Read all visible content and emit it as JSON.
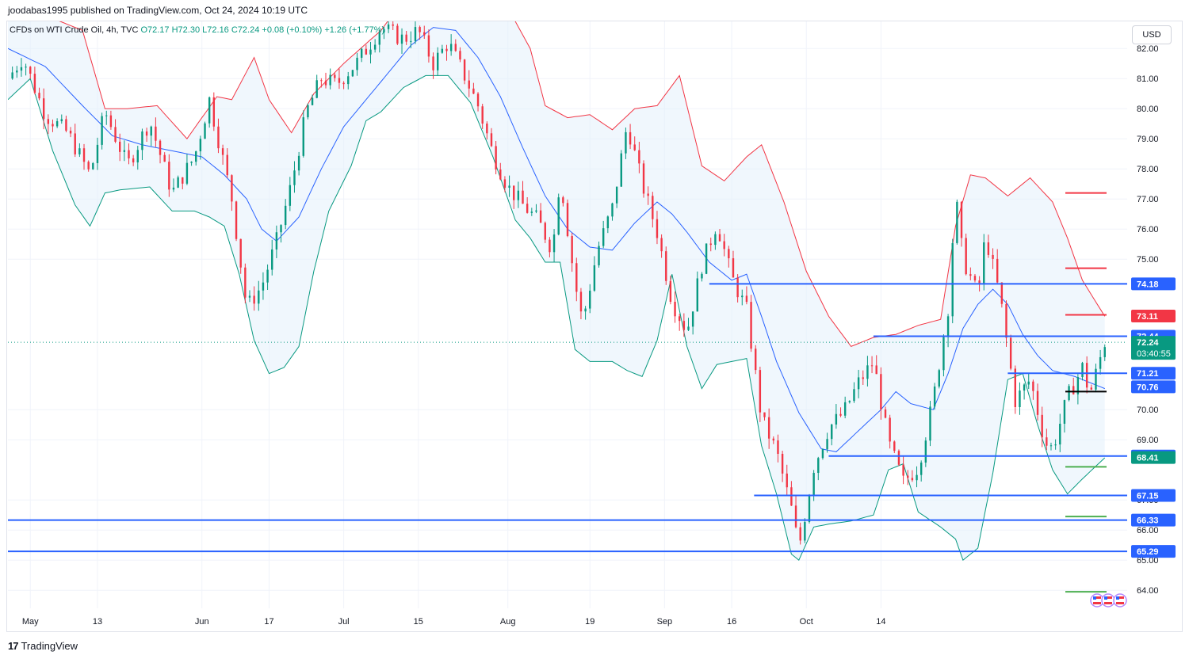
{
  "header": {
    "publisher_line": "joodabas1995 published on TradingView.com, Oct 24, 2024 10:19 UTC"
  },
  "legend": {
    "symbol": "CFDs on WTI Crude Oil, 4h, TVC",
    "open": "O72.17",
    "high": "H72.30",
    "low": "L72.16",
    "close": "C72.24",
    "change": "+0.08 (+0.10%)",
    "change2": "+1.26 (+1.77%)"
  },
  "currency_label": "USD",
  "footer": {
    "logo_mark": "17",
    "brand": "TradingView"
  },
  "colors": {
    "upper_band": "#f23645",
    "lower_band": "#089981",
    "basis": "#2962ff",
    "band_fill": "#e3f0fb",
    "candle_up": "#089981",
    "candle_down": "#f23645",
    "support_resistance": "#2962ff",
    "price_tag_blue": "#2962ff",
    "price_tag_red": "#f23645",
    "price_tag_green": "#089981",
    "target_red": "#f23645",
    "target_green": "#4caf50",
    "pivot_black": "#000000"
  },
  "chart_data": {
    "type": "candlestick",
    "symbol": "WTI Crude Oil",
    "interval": "4h",
    "x_ticks": [
      "May",
      "13",
      "Jun",
      "17",
      "Jul",
      "15",
      "Aug",
      "19",
      "Sep",
      "16",
      "Oct",
      "14"
    ],
    "y_ticks": [
      "82.00",
      "81.00",
      "80.00",
      "79.00",
      "78.00",
      "77.00",
      "76.00",
      "75.00",
      "70.00",
      "69.00",
      "67.00",
      "66.00",
      "65.00",
      "64.00"
    ],
    "ylim": [
      63.4,
      82.9
    ],
    "grid": true,
    "price_path": [
      {
        "t": 0,
        "p": 81.0
      },
      {
        "t": 2,
        "p": 81.7
      },
      {
        "t": 5,
        "p": 79.8
      },
      {
        "t": 8,
        "p": 79.2
      },
      {
        "t": 11,
        "p": 77.8
      },
      {
        "t": 13,
        "p": 79.9
      },
      {
        "t": 16,
        "p": 78.1
      },
      {
        "t": 19,
        "p": 79.6
      },
      {
        "t": 22,
        "p": 77.2
      },
      {
        "t": 25,
        "p": 78.4
      },
      {
        "t": 27,
        "p": 80.3
      },
      {
        "t": 30,
        "p": 77.0
      },
      {
        "t": 32,
        "p": 73.4
      },
      {
        "t": 34,
        "p": 74.1
      },
      {
        "t": 36,
        "p": 75.6
      },
      {
        "t": 38,
        "p": 77.5
      },
      {
        "t": 40,
        "p": 79.9
      },
      {
        "t": 42,
        "p": 81.0
      },
      {
        "t": 44,
        "p": 80.8
      },
      {
        "t": 47,
        "p": 81.6
      },
      {
        "t": 50,
        "p": 82.7
      },
      {
        "t": 53,
        "p": 82.3
      },
      {
        "t": 55,
        "p": 82.6
      },
      {
        "t": 57,
        "p": 81.5
      },
      {
        "t": 59,
        "p": 82.2
      },
      {
        "t": 61,
        "p": 81.2
      },
      {
        "t": 63,
        "p": 80.1
      },
      {
        "t": 65,
        "p": 78.5
      },
      {
        "t": 67,
        "p": 77.4
      },
      {
        "t": 69,
        "p": 76.8
      },
      {
        "t": 71,
        "p": 76.3
      },
      {
        "t": 73,
        "p": 75.3
      },
      {
        "t": 74,
        "p": 77.8
      },
      {
        "t": 76,
        "p": 74.2
      },
      {
        "t": 77,
        "p": 72.9
      },
      {
        "t": 79,
        "p": 75.3
      },
      {
        "t": 81,
        "p": 76.7
      },
      {
        "t": 83,
        "p": 79.5
      },
      {
        "t": 85,
        "p": 77.5
      },
      {
        "t": 87,
        "p": 75.9
      },
      {
        "t": 89,
        "p": 73.6
      },
      {
        "t": 91,
        "p": 72.6
      },
      {
        "t": 93,
        "p": 74.8
      },
      {
        "t": 95,
        "p": 76.2
      },
      {
        "t": 97,
        "p": 74.4
      },
      {
        "t": 99,
        "p": 73.3
      },
      {
        "t": 101,
        "p": 69.7
      },
      {
        "t": 103,
        "p": 68.6
      },
      {
        "t": 105,
        "p": 66.7
      },
      {
        "t": 106,
        "p": 65.4
      },
      {
        "t": 108,
        "p": 68.1
      },
      {
        "t": 110,
        "p": 69.4
      },
      {
        "t": 112,
        "p": 69.9
      },
      {
        "t": 114,
        "p": 70.9
      },
      {
        "t": 116,
        "p": 71.6
      },
      {
        "t": 118,
        "p": 68.9
      },
      {
        "t": 120,
        "p": 67.6
      },
      {
        "t": 122,
        "p": 68.1
      },
      {
        "t": 124,
        "p": 70.3
      },
      {
        "t": 126,
        "p": 73.4
      },
      {
        "t": 127,
        "p": 77.1
      },
      {
        "t": 128,
        "p": 75.0
      },
      {
        "t": 130,
        "p": 73.8
      },
      {
        "t": 131,
        "p": 75.8
      },
      {
        "t": 133,
        "p": 73.7
      },
      {
        "t": 135,
        "p": 70.3
      },
      {
        "t": 137,
        "p": 71.0
      },
      {
        "t": 139,
        "p": 68.9
      },
      {
        "t": 140,
        "p": 68.7
      },
      {
        "t": 142,
        "p": 70.4
      },
      {
        "t": 144,
        "p": 71.4
      },
      {
        "t": 145,
        "p": 70.5
      },
      {
        "t": 147,
        "p": 72.24
      }
    ],
    "bands": {
      "upper": [
        {
          "t": 0,
          "p": 84.8
        },
        {
          "t": 5,
          "p": 83.1
        },
        {
          "t": 10,
          "p": 82.6
        },
        {
          "t": 13,
          "p": 80.0
        },
        {
          "t": 16,
          "p": 80.0
        },
        {
          "t": 20,
          "p": 80.1
        },
        {
          "t": 24,
          "p": 79.0
        },
        {
          "t": 28,
          "p": 80.4
        },
        {
          "t": 30,
          "p": 80.3
        },
        {
          "t": 33,
          "p": 81.7
        },
        {
          "t": 35,
          "p": 80.3
        },
        {
          "t": 38,
          "p": 79.2
        },
        {
          "t": 41,
          "p": 80.5
        },
        {
          "t": 45,
          "p": 81.5
        },
        {
          "t": 50,
          "p": 82.6
        },
        {
          "t": 55,
          "p": 84.3
        },
        {
          "t": 60,
          "p": 85.5
        },
        {
          "t": 63,
          "p": 84.5
        },
        {
          "t": 66,
          "p": 83.8
        },
        {
          "t": 70,
          "p": 82.0
        },
        {
          "t": 72,
          "p": 80.1
        },
        {
          "t": 75,
          "p": 79.7
        },
        {
          "t": 78,
          "p": 79.8
        },
        {
          "t": 81,
          "p": 79.3
        },
        {
          "t": 84,
          "p": 80.0
        },
        {
          "t": 87,
          "p": 80.1
        },
        {
          "t": 90,
          "p": 81.1
        },
        {
          "t": 93,
          "p": 78.1
        },
        {
          "t": 96,
          "p": 77.6
        },
        {
          "t": 99,
          "p": 78.4
        },
        {
          "t": 101,
          "p": 78.8
        },
        {
          "t": 104,
          "p": 76.9
        },
        {
          "t": 107,
          "p": 74.6
        },
        {
          "t": 110,
          "p": 73.1
        },
        {
          "t": 113,
          "p": 72.1
        },
        {
          "t": 116,
          "p": 72.4
        },
        {
          "t": 119,
          "p": 72.5
        },
        {
          "t": 122,
          "p": 72.8
        },
        {
          "t": 125,
          "p": 73.0
        },
        {
          "t": 127,
          "p": 76.1
        },
        {
          "t": 129,
          "p": 77.8
        },
        {
          "t": 131,
          "p": 77.7
        },
        {
          "t": 134,
          "p": 77.1
        },
        {
          "t": 137,
          "p": 77.7
        },
        {
          "t": 140,
          "p": 76.9
        },
        {
          "t": 142,
          "p": 75.7
        },
        {
          "t": 144,
          "p": 74.3
        },
        {
          "t": 147,
          "p": 73.1
        }
      ],
      "basis": [
        {
          "t": 0,
          "p": 82.0
        },
        {
          "t": 5,
          "p": 81.4
        },
        {
          "t": 10,
          "p": 80.1
        },
        {
          "t": 14,
          "p": 79.1
        },
        {
          "t": 18,
          "p": 78.8
        },
        {
          "t": 22,
          "p": 78.6
        },
        {
          "t": 26,
          "p": 78.4
        },
        {
          "t": 29,
          "p": 77.8
        },
        {
          "t": 32,
          "p": 77.0
        },
        {
          "t": 34,
          "p": 76.0
        },
        {
          "t": 36,
          "p": 75.6
        },
        {
          "t": 39,
          "p": 76.4
        },
        {
          "t": 42,
          "p": 78.0
        },
        {
          "t": 45,
          "p": 79.4
        },
        {
          "t": 48,
          "p": 80.3
        },
        {
          "t": 51,
          "p": 81.2
        },
        {
          "t": 54,
          "p": 82.1
        },
        {
          "t": 57,
          "p": 82.7
        },
        {
          "t": 60,
          "p": 82.6
        },
        {
          "t": 63,
          "p": 81.7
        },
        {
          "t": 66,
          "p": 80.4
        },
        {
          "t": 69,
          "p": 78.7
        },
        {
          "t": 72,
          "p": 77.1
        },
        {
          "t": 75,
          "p": 76.0
        },
        {
          "t": 78,
          "p": 75.4
        },
        {
          "t": 81,
          "p": 75.3
        },
        {
          "t": 84,
          "p": 76.2
        },
        {
          "t": 87,
          "p": 76.9
        },
        {
          "t": 89,
          "p": 76.5
        },
        {
          "t": 91,
          "p": 75.9
        },
        {
          "t": 94,
          "p": 74.9
        },
        {
          "t": 97,
          "p": 74.3
        },
        {
          "t": 99,
          "p": 74.5
        },
        {
          "t": 101,
          "p": 73.1
        },
        {
          "t": 103,
          "p": 71.6
        },
        {
          "t": 106,
          "p": 69.9
        },
        {
          "t": 109,
          "p": 68.7
        },
        {
          "t": 111,
          "p": 68.6
        },
        {
          "t": 114,
          "p": 69.3
        },
        {
          "t": 117,
          "p": 70.0
        },
        {
          "t": 119,
          "p": 70.6
        },
        {
          "t": 121,
          "p": 70.2
        },
        {
          "t": 124,
          "p": 70.0
        },
        {
          "t": 126,
          "p": 71.2
        },
        {
          "t": 128,
          "p": 72.7
        },
        {
          "t": 130,
          "p": 73.5
        },
        {
          "t": 132,
          "p": 74.0
        },
        {
          "t": 134,
          "p": 73.5
        },
        {
          "t": 136,
          "p": 72.5
        },
        {
          "t": 138,
          "p": 71.8
        },
        {
          "t": 140,
          "p": 71.3
        },
        {
          "t": 143,
          "p": 71.1
        },
        {
          "t": 146,
          "p": 70.8
        },
        {
          "t": 147,
          "p": 70.7
        }
      ],
      "lower": [
        {
          "t": 0,
          "p": 80.3
        },
        {
          "t": 3,
          "p": 81.0
        },
        {
          "t": 6,
          "p": 78.6
        },
        {
          "t": 9,
          "p": 76.8
        },
        {
          "t": 11,
          "p": 76.1
        },
        {
          "t": 13,
          "p": 77.2
        },
        {
          "t": 15,
          "p": 77.3
        },
        {
          "t": 19,
          "p": 77.4
        },
        {
          "t": 22,
          "p": 76.6
        },
        {
          "t": 25,
          "p": 76.6
        },
        {
          "t": 27,
          "p": 76.4
        },
        {
          "t": 29,
          "p": 76.1
        },
        {
          "t": 31,
          "p": 74.5
        },
        {
          "t": 33,
          "p": 72.3
        },
        {
          "t": 35,
          "p": 71.2
        },
        {
          "t": 37,
          "p": 71.4
        },
        {
          "t": 39,
          "p": 72.1
        },
        {
          "t": 41,
          "p": 74.6
        },
        {
          "t": 43,
          "p": 76.6
        },
        {
          "t": 46,
          "p": 78.1
        },
        {
          "t": 48,
          "p": 79.6
        },
        {
          "t": 50,
          "p": 79.9
        },
        {
          "t": 53,
          "p": 80.7
        },
        {
          "t": 56,
          "p": 81.1
        },
        {
          "t": 59,
          "p": 81.1
        },
        {
          "t": 62,
          "p": 80.2
        },
        {
          "t": 65,
          "p": 78.4
        },
        {
          "t": 68,
          "p": 76.3
        },
        {
          "t": 70,
          "p": 75.7
        },
        {
          "t": 72,
          "p": 74.9
        },
        {
          "t": 74,
          "p": 74.9
        },
        {
          "t": 76,
          "p": 72.0
        },
        {
          "t": 78,
          "p": 71.6
        },
        {
          "t": 81,
          "p": 71.6
        },
        {
          "t": 83,
          "p": 71.3
        },
        {
          "t": 85,
          "p": 71.1
        },
        {
          "t": 87,
          "p": 72.3
        },
        {
          "t": 89,
          "p": 74.5
        },
        {
          "t": 91,
          "p": 72.1
        },
        {
          "t": 93,
          "p": 70.7
        },
        {
          "t": 95,
          "p": 71.5
        },
        {
          "t": 97,
          "p": 71.6
        },
        {
          "t": 99,
          "p": 71.7
        },
        {
          "t": 101,
          "p": 68.8
        },
        {
          "t": 103,
          "p": 67.2
        },
        {
          "t": 105,
          "p": 65.2
        },
        {
          "t": 106,
          "p": 65.0
        },
        {
          "t": 108,
          "p": 66.1
        },
        {
          "t": 110,
          "p": 66.2
        },
        {
          "t": 113,
          "p": 66.3
        },
        {
          "t": 116,
          "p": 66.5
        },
        {
          "t": 118,
          "p": 68.0
        },
        {
          "t": 120,
          "p": 68.2
        },
        {
          "t": 122,
          "p": 66.6
        },
        {
          "t": 125,
          "p": 66.1
        },
        {
          "t": 127,
          "p": 65.7
        },
        {
          "t": 128,
          "p": 65.0
        },
        {
          "t": 130,
          "p": 65.4
        },
        {
          "t": 132,
          "p": 67.9
        },
        {
          "t": 134,
          "p": 71.0
        },
        {
          "t": 136,
          "p": 71.2
        },
        {
          "t": 138,
          "p": 69.5
        },
        {
          "t": 140,
          "p": 68.0
        },
        {
          "t": 142,
          "p": 67.2
        },
        {
          "t": 144,
          "p": 67.7
        },
        {
          "t": 147,
          "p": 68.4
        }
      ]
    },
    "levels": [
      {
        "value": 74.18,
        "label": "74.18",
        "from_t": 94,
        "color": "blue"
      },
      {
        "value": 72.44,
        "label": "72.44",
        "from_t": 116,
        "color": "blue"
      },
      {
        "value": 71.21,
        "label": "71.21",
        "from_t": 134,
        "color": "blue"
      },
      {
        "value": 68.46,
        "label": "68.46",
        "from_t": 110,
        "color": "blue"
      },
      {
        "value": 67.15,
        "label": "67.15",
        "from_t": 100,
        "color": "blue"
      },
      {
        "value": 66.33,
        "label": "66.33",
        "from_t": 0,
        "color": "blue"
      },
      {
        "value": 65.29,
        "label": "65.29",
        "from_t": 0,
        "color": "blue"
      }
    ],
    "target_lines": [
      {
        "value": 77.2,
        "color": "red"
      },
      {
        "value": 74.7,
        "color": "red"
      },
      {
        "value": 73.15,
        "color": "red"
      },
      {
        "value": 70.6,
        "color": "black"
      },
      {
        "value": 68.1,
        "color": "green"
      },
      {
        "value": 66.45,
        "color": "green"
      },
      {
        "value": 63.95,
        "color": "green"
      }
    ],
    "price_tags": [
      {
        "value": 74.18,
        "label": "74.18",
        "style": "blue"
      },
      {
        "value": 73.11,
        "label": "73.11",
        "style": "red"
      },
      {
        "value": 72.44,
        "label": "72.44",
        "style": "blue"
      },
      {
        "value": 72.24,
        "label": "72.24",
        "sublabel": "03:40:55",
        "style": "green"
      },
      {
        "value": 71.21,
        "label": "71.21",
        "style": "blue"
      },
      {
        "value": 70.76,
        "label": "70.76",
        "style": "blue"
      },
      {
        "value": 68.46,
        "label": "68.46",
        "style": "blue"
      },
      {
        "value": 68.41,
        "label": "68.41",
        "style": "green"
      },
      {
        "value": 67.15,
        "label": "67.15",
        "style": "blue"
      },
      {
        "value": 66.33,
        "label": "66.33",
        "style": "blue"
      },
      {
        "value": 65.29,
        "label": "65.29",
        "style": "blue"
      }
    ],
    "last_price": 72.24
  }
}
